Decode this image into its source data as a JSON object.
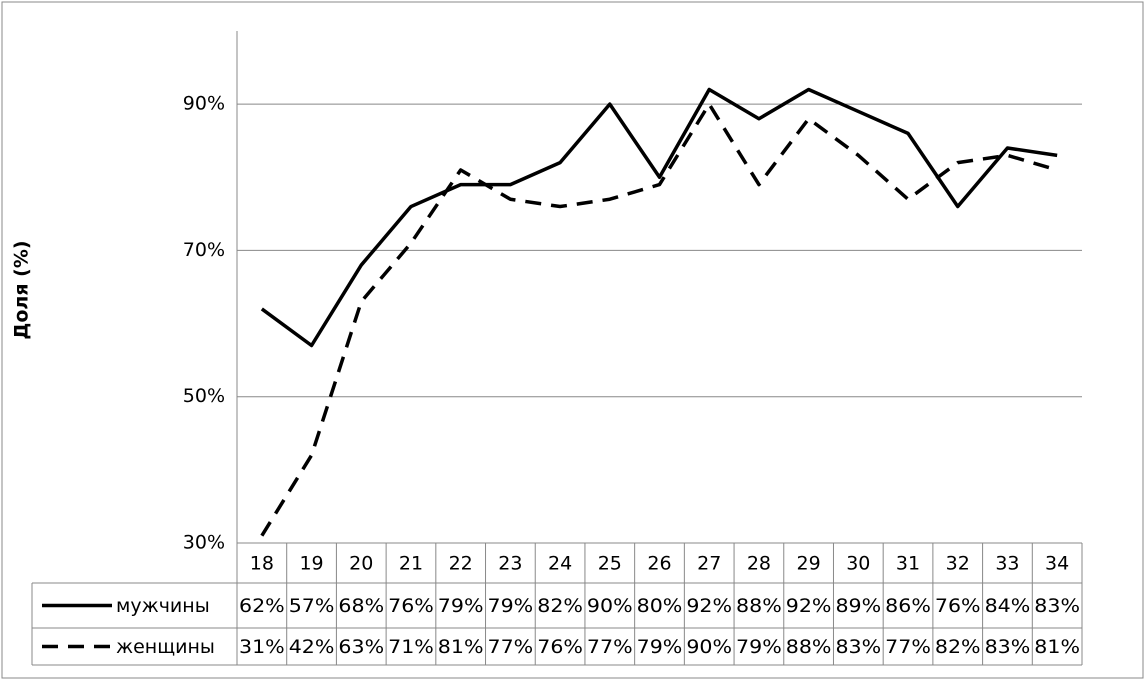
{
  "chart_data": {
    "type": "line",
    "y_label": "Доля (%)",
    "categories": [
      "18",
      "19",
      "20",
      "21",
      "22",
      "23",
      "24",
      "25",
      "26",
      "27",
      "28",
      "29",
      "30",
      "31",
      "32",
      "33",
      "34"
    ],
    "series": [
      {
        "name": "мужчины",
        "color": "#000000",
        "dash": "solid",
        "values": [
          62,
          57,
          68,
          76,
          79,
          79,
          82,
          90,
          80,
          92,
          88,
          92,
          89,
          86,
          76,
          84,
          83
        ],
        "value_labels": [
          "62%",
          "57%",
          "68%",
          "76%",
          "79%",
          "79%",
          "82%",
          "90%",
          "80%",
          "92%",
          "88%",
          "92%",
          "89%",
          "86%",
          "76%",
          "84%",
          "83%"
        ]
      },
      {
        "name": "женщины",
        "color": "#000000",
        "dash": "dashed",
        "values": [
          31,
          42,
          63,
          71,
          81,
          77,
          76,
          77,
          79,
          90,
          79,
          88,
          83,
          77,
          82,
          83,
          81
        ],
        "value_labels": [
          "31%",
          "42%",
          "63%",
          "71%",
          "81%",
          "77%",
          "76%",
          "77%",
          "79%",
          "90%",
          "79%",
          "88%",
          "83%",
          "77%",
          "82%",
          "83%",
          "81%"
        ]
      }
    ],
    "ylim": [
      30,
      100
    ],
    "yticks": [
      {
        "value": 30,
        "label": "30%"
      },
      {
        "value": 50,
        "label": "50%"
      },
      {
        "value": 70,
        "label": "70%"
      },
      {
        "value": 90,
        "label": "90%"
      }
    ],
    "grid": true
  }
}
